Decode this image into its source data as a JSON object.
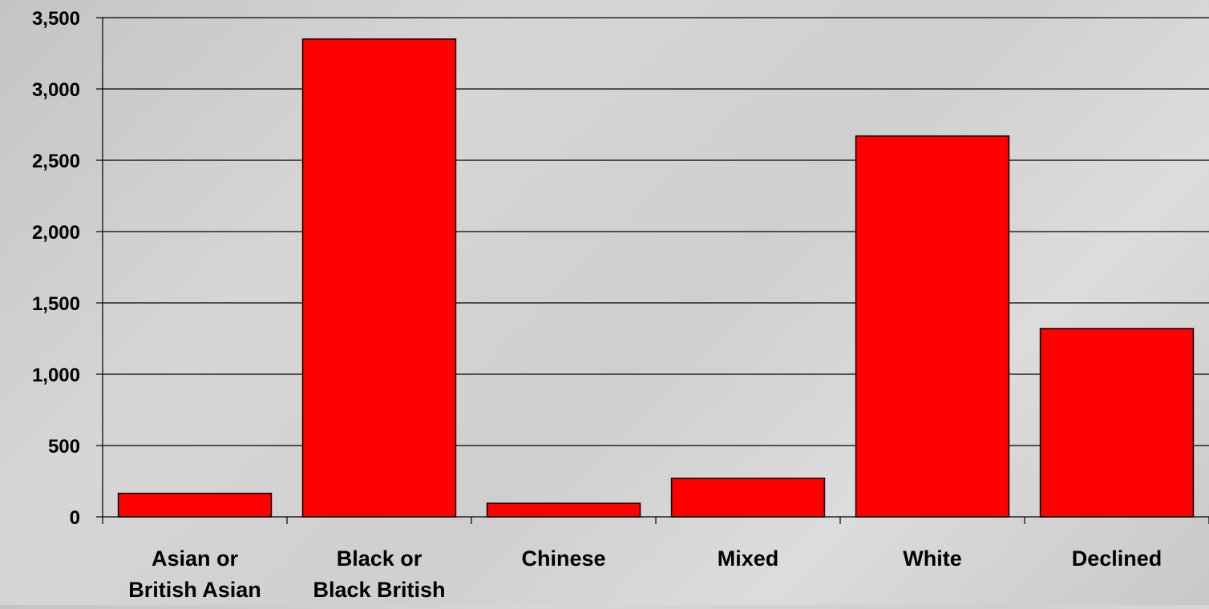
{
  "chart_data": {
    "type": "bar",
    "categories": [
      [
        "Asian or",
        "British Asian"
      ],
      [
        "Black or",
        "Black British"
      ],
      [
        "Chinese"
      ],
      [
        "Mixed"
      ],
      [
        "White"
      ],
      [
        "Declined"
      ]
    ],
    "values": [
      165,
      3350,
      95,
      270,
      2670,
      1320
    ],
    "ylim": [
      0,
      3500
    ],
    "yticks": [
      0,
      500,
      1000,
      1500,
      2000,
      2500,
      3000,
      3500
    ],
    "ytick_labels": [
      "0",
      "500",
      "1,000",
      "1,500",
      "2,000",
      "2,500",
      "3,000",
      "3,500"
    ],
    "grid": true,
    "bar_color": "#ff0000",
    "title": "",
    "xlabel": "",
    "ylabel": ""
  }
}
